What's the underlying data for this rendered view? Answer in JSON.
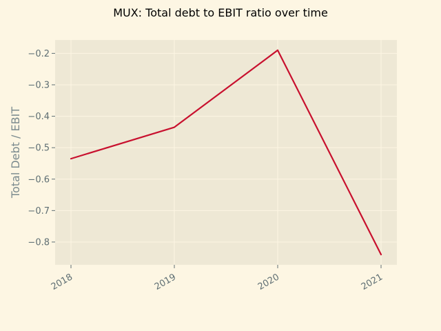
{
  "chart_data": {
    "type": "line",
    "title": "MUX: Total debt to EBIT ratio over time",
    "xlabel": "",
    "ylabel": "Total Debt / EBIT",
    "x": [
      "2018",
      "2019",
      "2020",
      "2021"
    ],
    "series": [
      {
        "values": [
          -0.535,
          -0.435,
          -0.19,
          -0.84
        ]
      }
    ],
    "yticks": [
      "−0.8",
      "−0.7",
      "−0.6",
      "−0.5",
      "−0.4",
      "−0.3",
      "−0.2"
    ],
    "ytick_values": [
      -0.8,
      -0.7,
      -0.6,
      -0.5,
      -0.4,
      -0.3,
      -0.2
    ],
    "ylim": [
      -0.8725,
      -0.1575
    ],
    "grid": true,
    "colors": {
      "page_background": "#fdf6e3",
      "plot_background": "#eee8d5",
      "line": "#c8102e",
      "tick_text": "#5e6e73",
      "axis_label": "#7a8a8e"
    }
  }
}
